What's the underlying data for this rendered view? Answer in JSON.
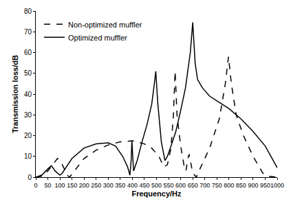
{
  "chart_data": {
    "type": "line",
    "x_label": "Frequency/Hz",
    "y_label": "Transmission loss/dB",
    "xlim": [
      0,
      1000
    ],
    "xticks": [
      0,
      50,
      100,
      150,
      200,
      250,
      300,
      350,
      400,
      450,
      500,
      550,
      600,
      650,
      700,
      750,
      800,
      850,
      900,
      950,
      1000
    ],
    "ylim": [
      0,
      80
    ],
    "yticks": [
      0,
      10,
      20,
      30,
      40,
      50,
      60,
      70,
      80
    ],
    "grid": false,
    "legend": "top left",
    "series": [
      {
        "name": "Non-optimized muffler",
        "color": "#000000",
        "line_style": "dashed",
        "x": [
          0,
          25,
          50,
          75,
          90,
          110,
          130,
          140,
          160,
          200,
          250,
          300,
          350,
          400,
          420,
          450,
          480,
          510,
          530,
          545,
          560,
          570,
          577,
          585,
          600,
          615,
          622,
          630,
          635,
          640,
          650,
          665,
          680,
          720,
          760,
          785,
          798,
          810,
          830,
          860,
          900,
          940,
          960,
          1000
        ],
        "values": [
          0,
          0.5,
          3,
          7,
          9,
          6,
          1,
          0,
          3,
          9,
          13,
          15.5,
          17,
          17.5,
          17,
          16,
          14,
          10,
          5,
          6,
          14,
          30,
          51,
          30,
          15,
          5,
          3,
          9,
          11,
          8,
          2,
          0,
          4,
          14,
          28,
          45,
          58,
          45,
          30,
          20,
          10,
          2,
          0.5,
          0
        ]
      },
      {
        "name": "Optimized muffler",
        "color": "#000000",
        "line_style": "solid",
        "x": [
          0,
          25,
          50,
          65,
          80,
          100,
          110,
          150,
          200,
          250,
          300,
          330,
          360,
          380,
          390,
          395,
          398,
          401,
          405,
          420,
          440,
          460,
          480,
          490,
          497,
          505,
          520,
          535,
          545,
          560,
          580,
          600,
          620,
          640,
          650,
          660,
          670,
          690,
          720,
          760,
          800,
          850,
          900,
          950,
          1000
        ],
        "values": [
          0,
          1,
          4,
          5.5,
          3,
          1,
          2,
          9,
          14,
          16,
          16.5,
          15,
          10,
          5,
          1,
          8,
          17.5,
          12,
          3,
          8,
          17,
          25,
          35,
          44,
          51,
          36,
          17,
          8,
          10,
          15,
          22,
          32,
          43,
          60,
          74.5,
          55,
          47,
          43,
          39,
          36,
          33,
          28,
          22,
          15,
          4.5
        ]
      }
    ]
  }
}
